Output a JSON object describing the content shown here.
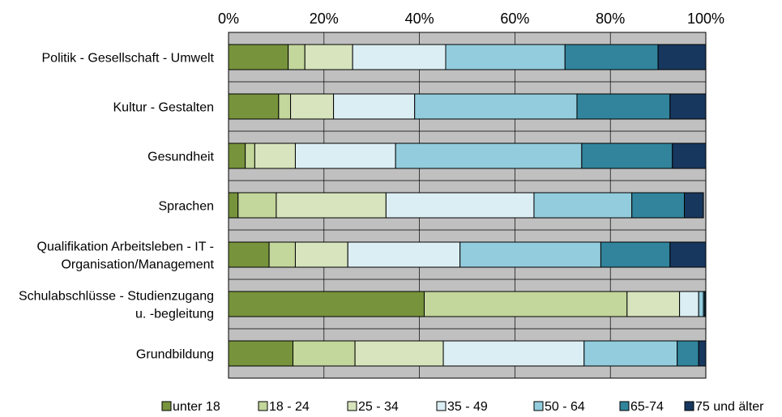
{
  "chart_data": {
    "type": "bar",
    "orientation": "horizontal",
    "stacked": "percent",
    "grid": true,
    "legend_position": "bottom",
    "xlim": [
      0,
      100
    ],
    "x_ticks": [
      "0%",
      "20%",
      "40%",
      "60%",
      "80%",
      "100%"
    ],
    "categories": [
      [
        "Politik - Gesellschaft - Umwelt"
      ],
      [
        "Kultur - Gestalten"
      ],
      [
        "Gesundheit"
      ],
      [
        "Sprachen"
      ],
      [
        "Qualifikation Arbeitsleben - IT -",
        "Organisation/Management"
      ],
      [
        "Schulabschlüsse - Studienzugang",
        "u. -begleitung"
      ],
      [
        "Grundbildung"
      ]
    ],
    "series": [
      {
        "name": "unter 18",
        "color": "#77933c",
        "values": [
          12.5,
          10.5,
          3.5,
          2.0,
          8.5,
          41.0,
          13.5
        ]
      },
      {
        "name": "18 - 24",
        "color": "#c3d69b",
        "values": [
          3.5,
          2.5,
          2.0,
          8.0,
          5.5,
          42.5,
          13.0
        ]
      },
      {
        "name": "25 - 34",
        "color": "#d7e4bd",
        "values": [
          10.0,
          9.0,
          8.5,
          23.0,
          11.0,
          11.0,
          18.5
        ]
      },
      {
        "name": "35 - 49",
        "color": "#dbeef4",
        "values": [
          19.5,
          17.0,
          21.0,
          31.0,
          23.5,
          4.0,
          29.5
        ]
      },
      {
        "name": "50 - 64",
        "color": "#93cddd",
        "values": [
          25.0,
          34.0,
          39.0,
          20.5,
          29.5,
          1.0,
          19.5
        ]
      },
      {
        "name": "65-74",
        "color": "#31849b",
        "values": [
          19.5,
          19.5,
          19.0,
          11.0,
          14.5,
          0.3,
          4.5
        ]
      },
      {
        "name": "75 und älter",
        "color": "#17375e",
        "values": [
          10.0,
          7.5,
          7.0,
          4.0,
          7.5,
          0.2,
          1.5
        ]
      }
    ]
  }
}
